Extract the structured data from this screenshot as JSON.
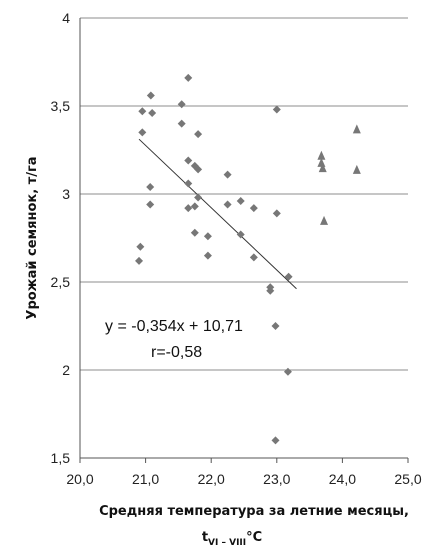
{
  "chart_data": {
    "type": "scatter",
    "xlabel_line1": "Средняя температура за летние месяцы,",
    "xlabel_line2_main": "t",
    "xlabel_line2_sub": "VI – VIII",
    "xlabel_line2_unit": "°C",
    "ylabel": "Урожай семянок, т/га",
    "xlim": [
      20.0,
      25.0
    ],
    "ylim": [
      1.5,
      4.0
    ],
    "x_ticks": [
      "20,0",
      "21,0",
      "22,0",
      "23,0",
      "24,0",
      "25,0"
    ],
    "y_ticks": [
      "1,5",
      "2",
      "2,5",
      "3",
      "3,5",
      "4"
    ],
    "grid_y": true,
    "series": [
      {
        "marker": "diamond",
        "color": "#777777",
        "points": [
          [
            20.9,
            2.62
          ],
          [
            20.92,
            2.7
          ],
          [
            20.95,
            3.47
          ],
          [
            20.95,
            3.35
          ],
          [
            21.08,
            3.56
          ],
          [
            21.1,
            3.46
          ],
          [
            21.07,
            3.04
          ],
          [
            21.07,
            2.94
          ],
          [
            21.55,
            3.51
          ],
          [
            21.55,
            3.4
          ],
          [
            21.65,
            3.66
          ],
          [
            21.65,
            3.19
          ],
          [
            21.65,
            3.06
          ],
          [
            21.65,
            2.92
          ],
          [
            21.75,
            3.16
          ],
          [
            21.8,
            3.34
          ],
          [
            21.8,
            3.14
          ],
          [
            21.8,
            2.98
          ],
          [
            21.75,
            2.93
          ],
          [
            21.75,
            2.78
          ],
          [
            21.95,
            2.76
          ],
          [
            21.95,
            2.65
          ],
          [
            22.25,
            3.11
          ],
          [
            22.25,
            2.94
          ],
          [
            22.45,
            2.96
          ],
          [
            22.45,
            2.77
          ],
          [
            22.65,
            2.92
          ],
          [
            22.65,
            2.64
          ],
          [
            22.9,
            2.47
          ],
          [
            22.9,
            2.45
          ],
          [
            23.0,
            3.48
          ],
          [
            23.0,
            2.89
          ],
          [
            22.98,
            2.25
          ],
          [
            23.18,
            2.53
          ],
          [
            23.17,
            1.99
          ],
          [
            22.98,
            1.6
          ]
        ]
      },
      {
        "marker": "triangle",
        "color": "#777777",
        "points": [
          [
            23.68,
            3.22
          ],
          [
            23.68,
            3.18
          ],
          [
            23.7,
            3.15
          ],
          [
            23.72,
            2.85
          ],
          [
            24.22,
            3.37
          ],
          [
            24.22,
            3.14
          ]
        ]
      }
    ],
    "trendline": {
      "x_start": 20.9,
      "x_end": 23.3,
      "slope": -0.354,
      "intercept": 10.71
    },
    "annotations": {
      "equation": "y = -0,354x + 10,71",
      "r": "r=-0,58"
    }
  }
}
